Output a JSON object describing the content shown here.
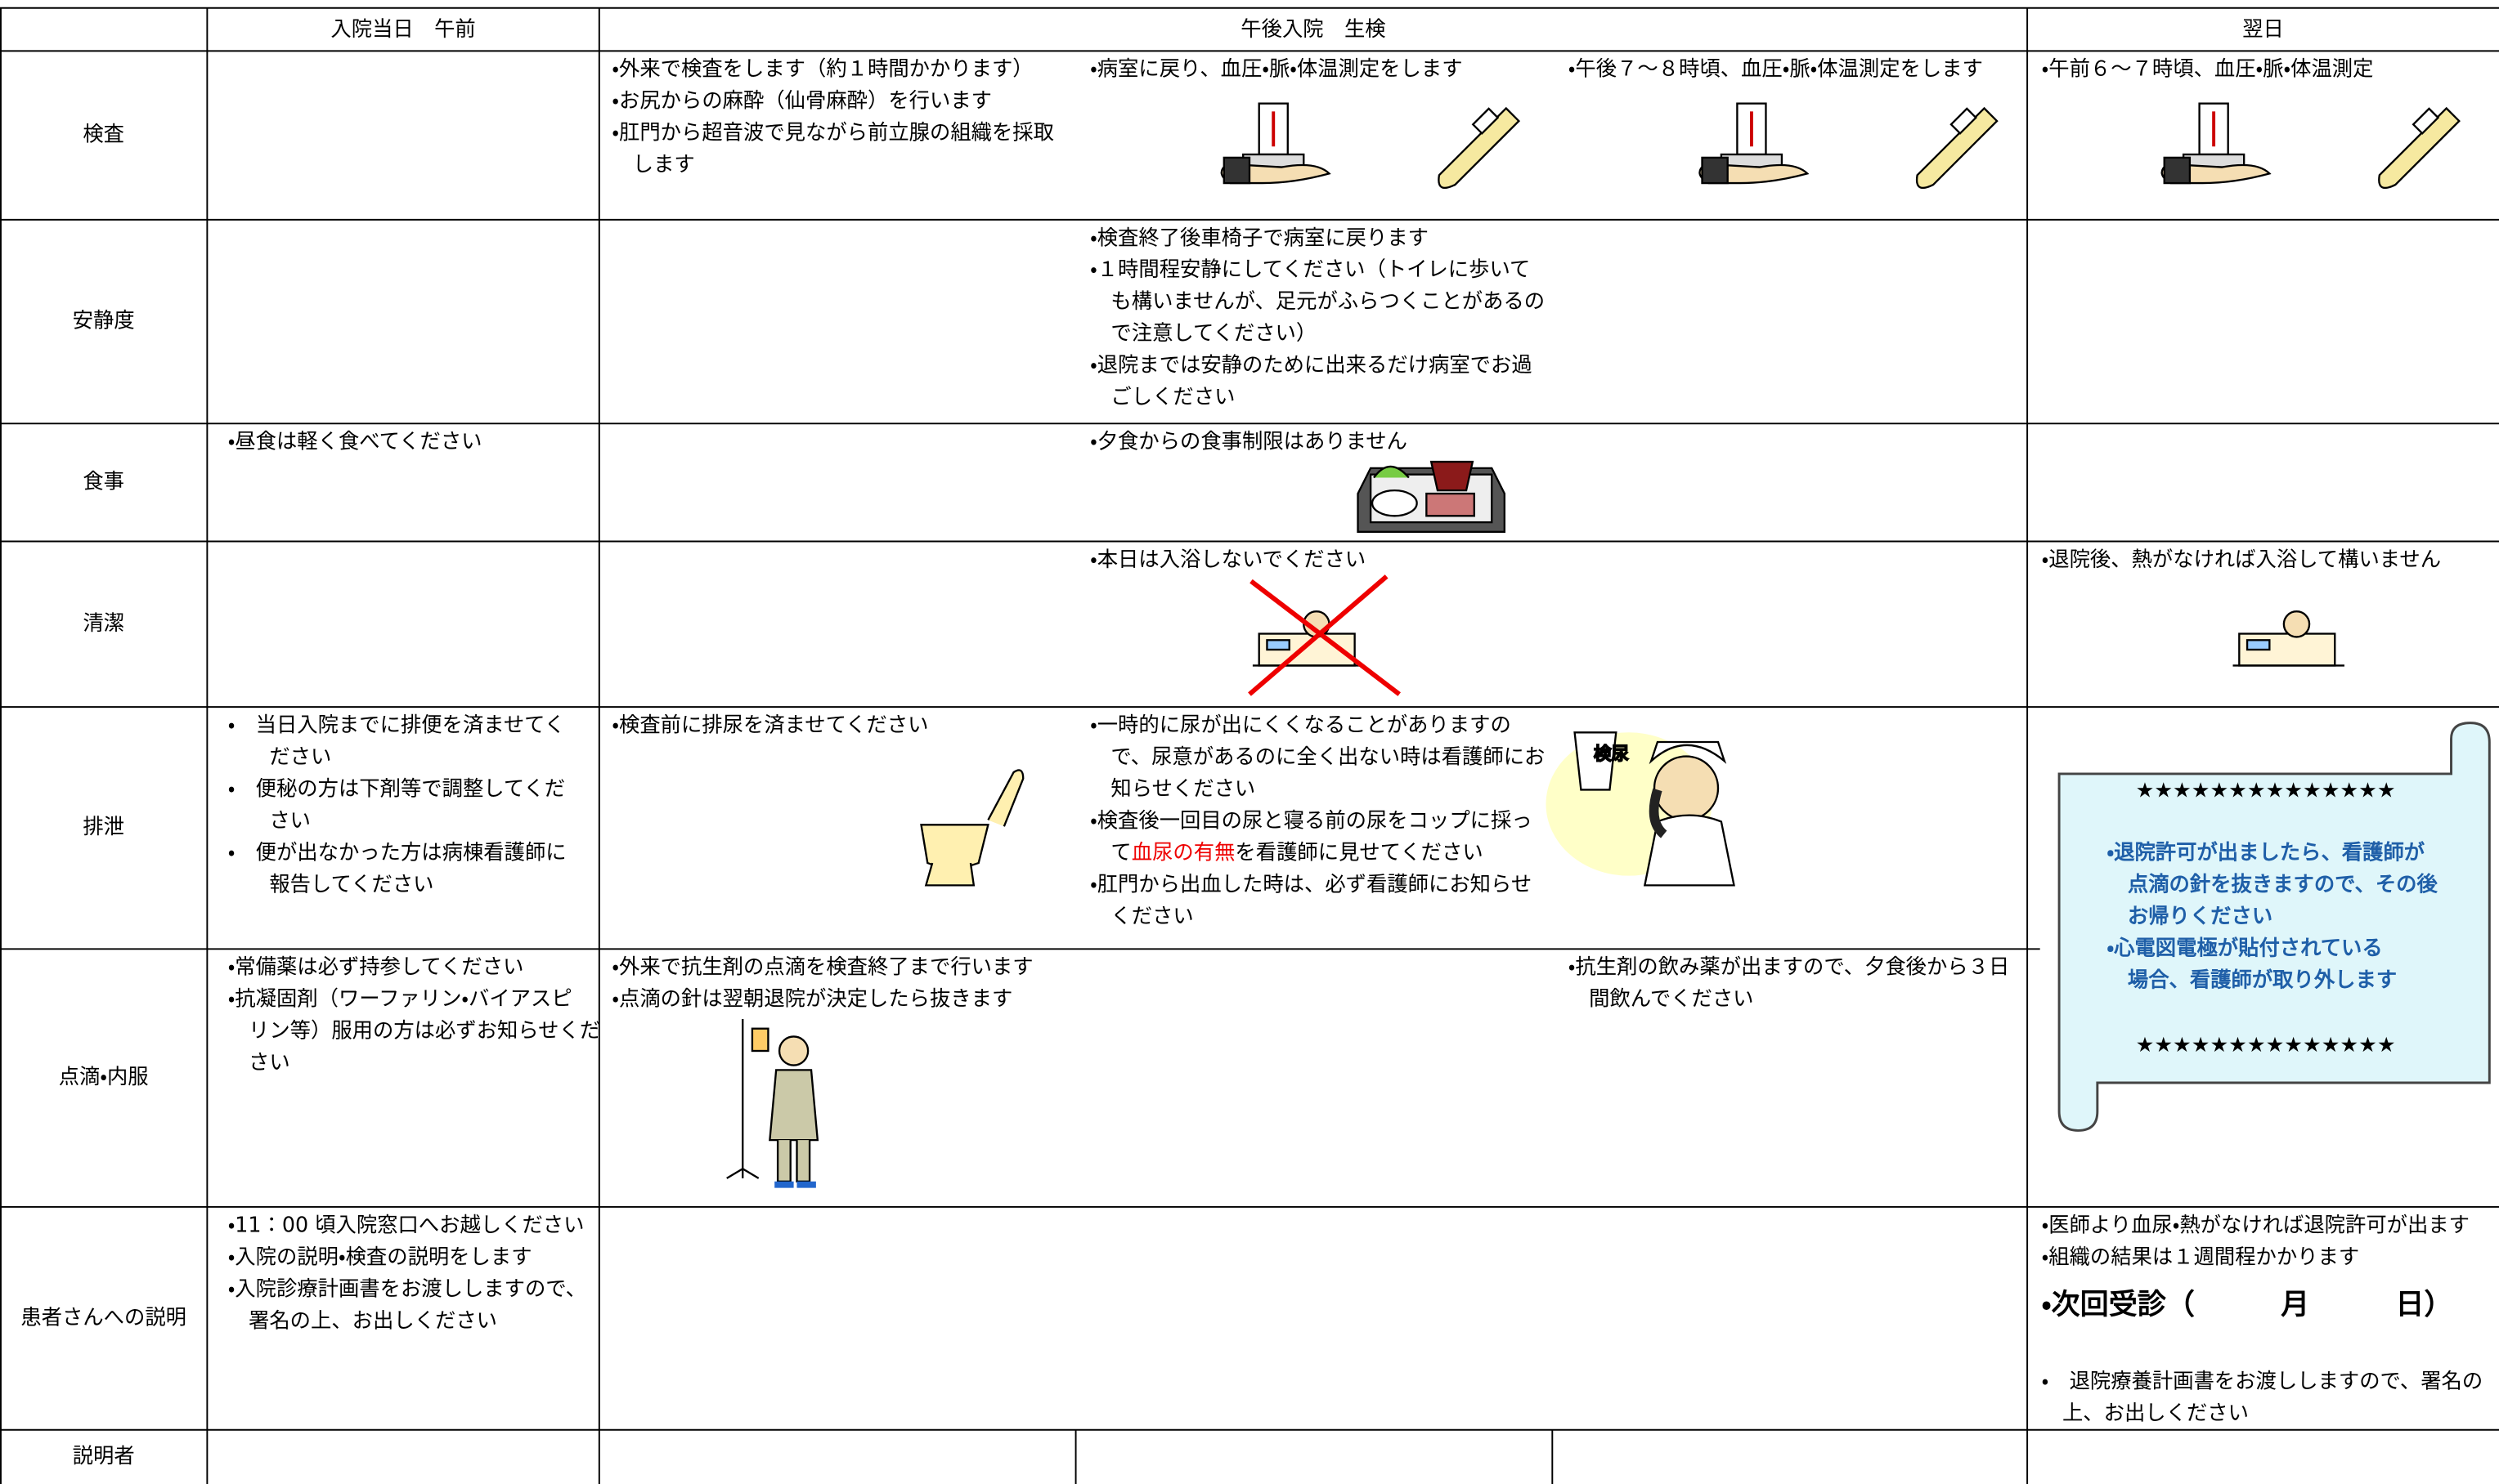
{
  "header": {
    "cols": [
      "入院当日　午前",
      "午後入院　生検",
      "翌日"
    ]
  },
  "rows": [
    {
      "label": "検査",
      "cells": [
        [],
        [
          "・外来で検査をします（約１時間かかります）",
          "・お尻からの麻酔（仙骨麻酔）を行います",
          "・肛門から超音波で見ながら前立腺の組織を採取",
          "　します"
        ],
        [
          "・病室に戻り、血圧・脈・体温測定をします"
        ],
        [
          "・午後７～８時頃、血圧・脈・体温測定をします"
        ],
        [
          "・午前６～７時頃、血圧・脈・体温測定"
        ]
      ]
    },
    {
      "label": "安静度",
      "cells": [
        [],
        [],
        [
          "・検査終了後車椅子で病室に戻ります",
          "・１時間程安静にしてください（トイレに歩いて",
          "　も構いませんが、足元がふらつくことがあるの",
          "　で注意してください）",
          "・退院までは安静のために出来るだけ病室でお過",
          "　ごしください"
        ],
        [],
        []
      ]
    },
    {
      "label": "食事",
      "cells": [
        [
          "・昼食は軽く食べてください"
        ],
        [],
        [
          "・夕食からの食事制限はありません"
        ],
        [],
        []
      ]
    },
    {
      "label": "清潔",
      "cells": [
        [],
        [],
        [
          "・本日は入浴しないでください"
        ],
        [],
        [
          "・退院後、熱がなければ入浴して構いません"
        ]
      ]
    },
    {
      "label": "排泄",
      "cells": [
        [
          "・　当日入院までに排便を済ませてく",
          "　　ださい",
          "・　便秘の方は下剤等で調整してくだ",
          "　　さい",
          "・　便が出なかった方は病棟看護師に",
          "　　報告してください"
        ],
        [
          "・検査前に排尿を済ませてください"
        ],
        [
          "・一時的に尿が出にくくなることがありますの",
          "　で、尿意があるのに全く出ない時は看護師にお",
          "　知らせください",
          "・検査後一回目の尿と寝る前の尿をコップに採っ",
          [
            "　て",
            "血尿の有無",
            "を看護師に見せてください"
          ],
          "・肛門から出血した時は、必ず看護師にお知らせ",
          "　ください"
        ],
        [],
        []
      ],
      "cup": "検尿"
    },
    {
      "label": "点滴・内服",
      "cells": [
        [
          "・常備薬は必ず持参してください",
          "・抗凝固剤（ワーファリン・バイアスピ",
          "　リン等）服用の方は必ずお知らせくだ",
          "　さい"
        ],
        [
          "・外来で抗生剤の点滴を検査終了まで行います",
          "・点滴の針は翌朝退院が決定したら抜きます"
        ],
        [],
        [
          "・抗生剤の飲み薬が出ますので、夕食後から３日",
          "　間飲んでください"
        ],
        []
      ]
    },
    {
      "label": "患者さんへの説明",
      "cells": [
        [
          "・11：00 頃入院窓口へお越しください",
          "・入院の説明・検査の説明をします",
          "・入院診療計画書をお渡ししますので、",
          "　署名の上、お出しください"
        ],
        [],
        [],
        [],
        [
          "・医師より血尿・熱がなければ退院許可が出ます",
          "・組織の結果は１週間程かかります",
          "・　退院療養計画書をお渡ししますので、署名の",
          "　上、お出しください"
        ]
      ],
      "next_visit": "・次回受診（　　　月　　　日）"
    },
    {
      "label": "説明者",
      "cells": [
        [],
        [],
        [],
        [],
        []
      ]
    }
  ],
  "notice": {
    "stars": "★★★★★★★★★★★★★★",
    "lines": [
      "・退院許可が出ましたら、看護師が",
      "　点滴の針を抜きますので、その後",
      "　お帰りください",
      "・心電図電極が貼付されている",
      "　場合、看護師が取り外します"
    ]
  }
}
